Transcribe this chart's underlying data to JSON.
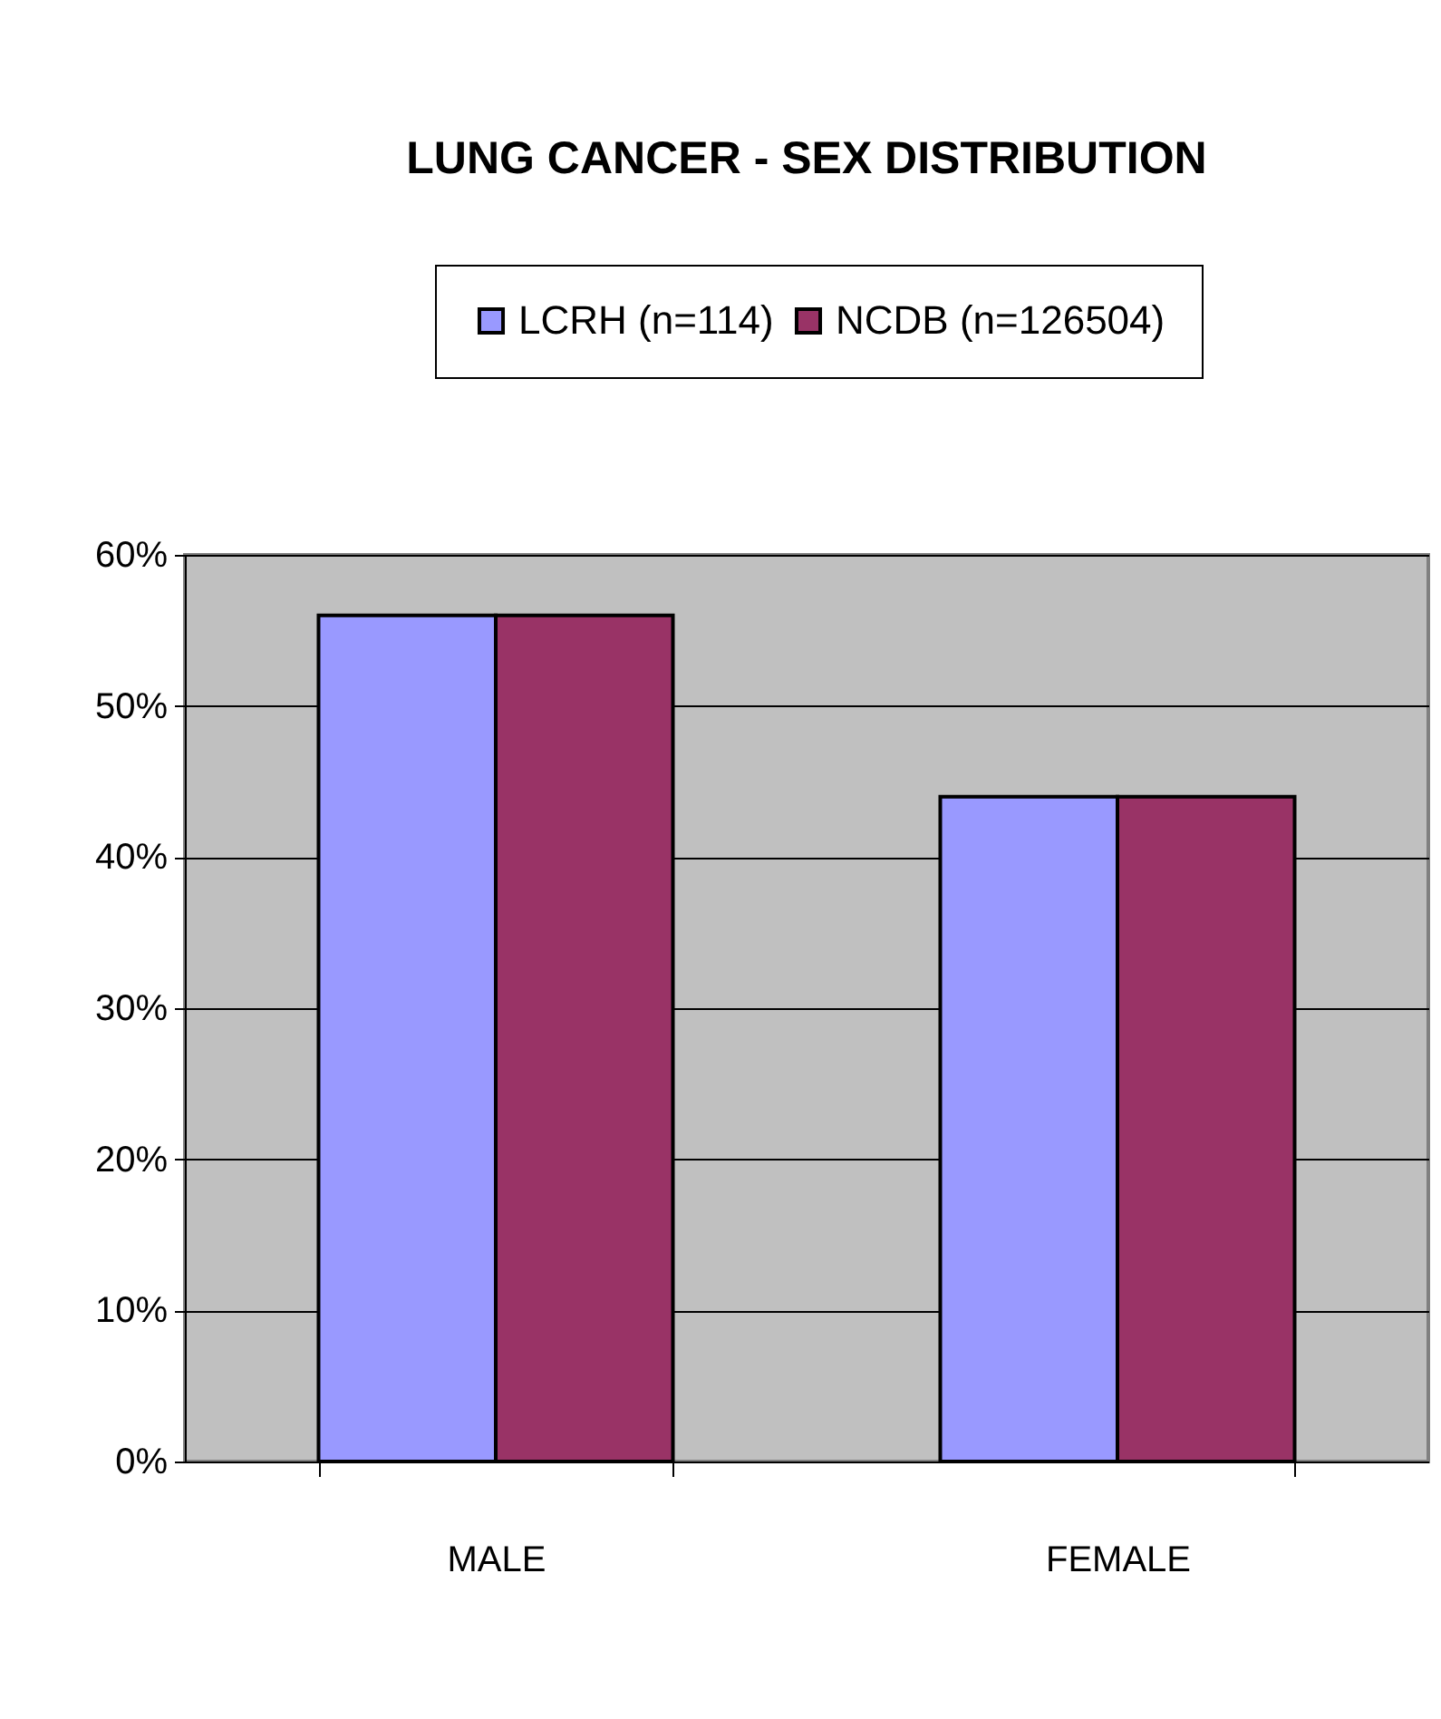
{
  "chart_data": {
    "type": "bar",
    "title": "LUNG CANCER - SEX DISTRIBUTION",
    "categories": [
      "MALE",
      "FEMALE"
    ],
    "series": [
      {
        "name": "LCRH (n=114)",
        "color": "#9999ff",
        "values": [
          56,
          44
        ]
      },
      {
        "name": "NCDB (n=126504)",
        "color": "#993366",
        "values": [
          56,
          44
        ]
      }
    ],
    "ylim": [
      0,
      60
    ],
    "yticks": [
      {
        "value": 0,
        "label": "0%"
      },
      {
        "value": 10,
        "label": "10%"
      },
      {
        "value": 20,
        "label": "20%"
      },
      {
        "value": 30,
        "label": "30%"
      },
      {
        "value": 40,
        "label": "40%"
      },
      {
        "value": 50,
        "label": "50%"
      },
      {
        "value": 60,
        "label": "60%"
      }
    ],
    "grid": "y",
    "legend": "top"
  }
}
